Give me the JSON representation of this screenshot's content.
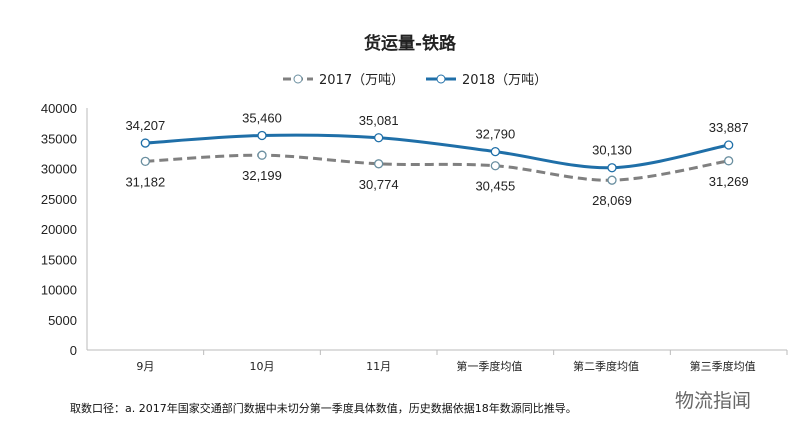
{
  "chart_data": {
    "type": "line",
    "title": "货运量-铁路",
    "categories": [
      "9月",
      "10月",
      "11月",
      "第一季度均值",
      "第二季度均值",
      "第三季度均值"
    ],
    "series": [
      {
        "name": "2017（万吨）",
        "values": [
          31182,
          32199,
          30774,
          30455,
          28069,
          31269
        ],
        "labels": [
          "31,182",
          "32,199",
          "30,774",
          "30,455",
          "28,069",
          "31,269"
        ],
        "color": "#808080",
        "dash": true
      },
      {
        "name": "2018（万吨）",
        "values": [
          34207,
          35460,
          35081,
          32790,
          30130,
          33887
        ],
        "labels": [
          "34,207",
          "35,460",
          "35,081",
          "32,790",
          "30,130",
          "33,887"
        ],
        "color": "#1f6fa8",
        "dash": false
      }
    ],
    "ylim": [
      0,
      40000
    ],
    "yticks": [
      0,
      5000,
      10000,
      15000,
      20000,
      25000,
      30000,
      35000,
      40000
    ],
    "legend": "top",
    "grid": false
  },
  "note": "取数口径：a. 2017年国家交通部门数据中未切分第一季度具体数值，历史数据依据18年数源同比推导。",
  "watermark": "物流指闻"
}
